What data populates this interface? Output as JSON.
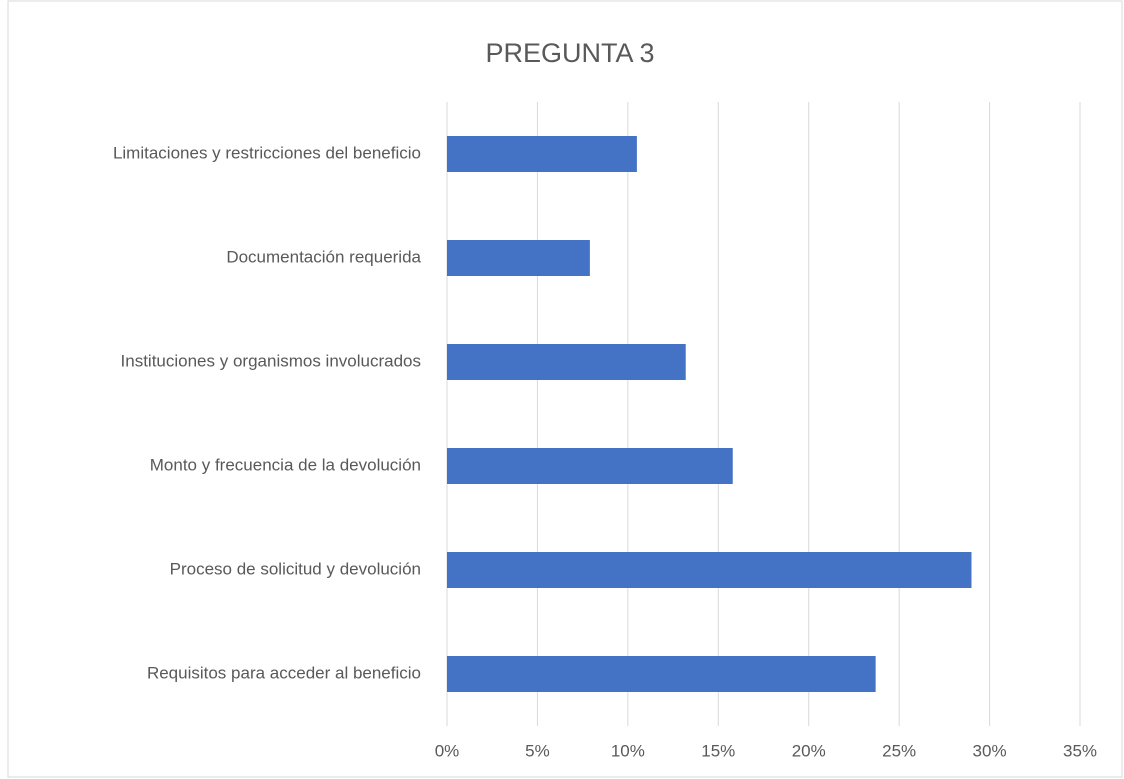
{
  "chart_data": {
    "type": "bar",
    "orientation": "horizontal",
    "title": "PREGUNTA 3",
    "categories": [
      "Limitaciones y restricciones del beneficio",
      "Documentación requerida",
      "Instituciones y organismos involucrados",
      "Monto y frecuencia de la devolución",
      "Proceso de solicitud y devolución",
      "Requisitos para acceder al beneficio"
    ],
    "values": [
      10.5,
      7.9,
      13.2,
      15.8,
      29.0,
      23.7
    ],
    "color": "#4472c4",
    "xlim": [
      0,
      35
    ],
    "xticks": [
      {
        "value": 0,
        "label": "0%"
      },
      {
        "value": 5,
        "label": "5%"
      },
      {
        "value": 10,
        "label": "10%"
      },
      {
        "value": 15,
        "label": "15%"
      },
      {
        "value": 20,
        "label": "20%"
      },
      {
        "value": 25,
        "label": "25%"
      },
      {
        "value": 30,
        "label": "30%"
      },
      {
        "value": 35,
        "label": "35%"
      }
    ],
    "grid": true
  }
}
